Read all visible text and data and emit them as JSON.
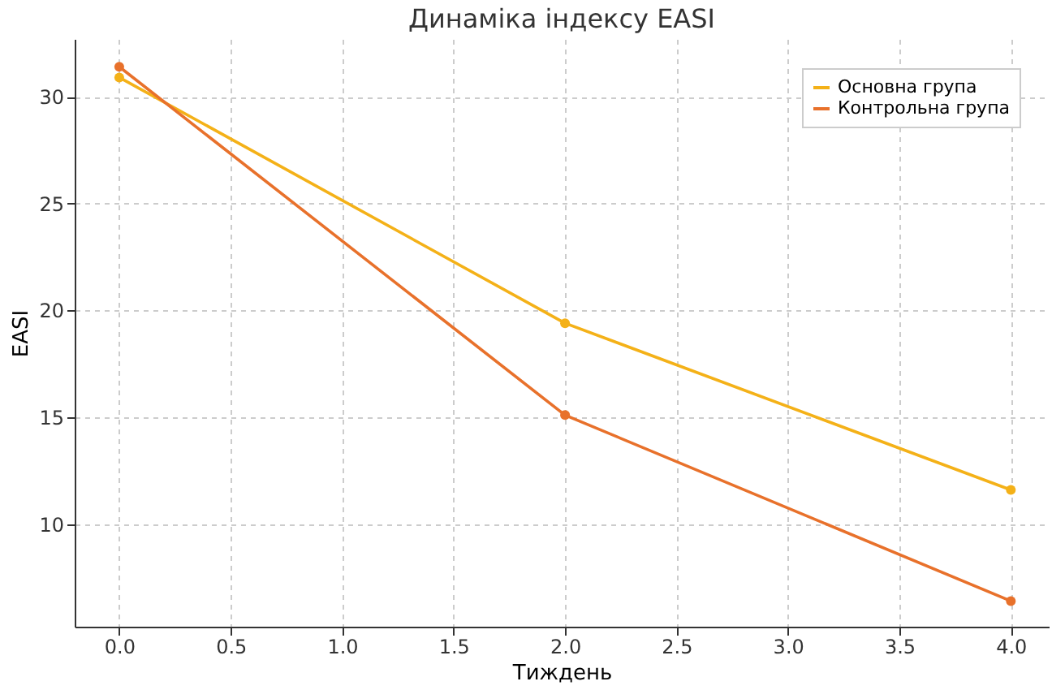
{
  "chart_data": {
    "type": "line",
    "title": "Динаміка індексу EASI",
    "xlabel": "Тиждень",
    "ylabel": "EASI",
    "x": [
      0,
      2,
      4
    ],
    "series": [
      {
        "name": "Основна група",
        "color": "#f4b118",
        "values": [
          30.9,
          19.4,
          11.6
        ]
      },
      {
        "name": "Контрольна група",
        "color": "#e8712b",
        "values": [
          31.4,
          15.1,
          6.4
        ]
      }
    ],
    "xlim": [
      -0.2,
      4.17
    ],
    "xticks": [
      {
        "value": 0,
        "label": "0.0"
      },
      {
        "value": 0.5,
        "label": "0.5"
      },
      {
        "value": 1,
        "label": "1.0"
      },
      {
        "value": 1.5,
        "label": "1.5"
      },
      {
        "value": 2,
        "label": "2.0"
      },
      {
        "value": 2.5,
        "label": "2.5"
      },
      {
        "value": 3,
        "label": "3.0"
      },
      {
        "value": 3.5,
        "label": "3.5"
      },
      {
        "value": 4,
        "label": "4.0"
      }
    ],
    "ylim": [
      5.2,
      32.7
    ],
    "yticks": [
      10,
      15,
      20,
      25,
      30
    ],
    "grid": true,
    "legend": "top right",
    "marker": "circle",
    "line_style": "solid"
  }
}
